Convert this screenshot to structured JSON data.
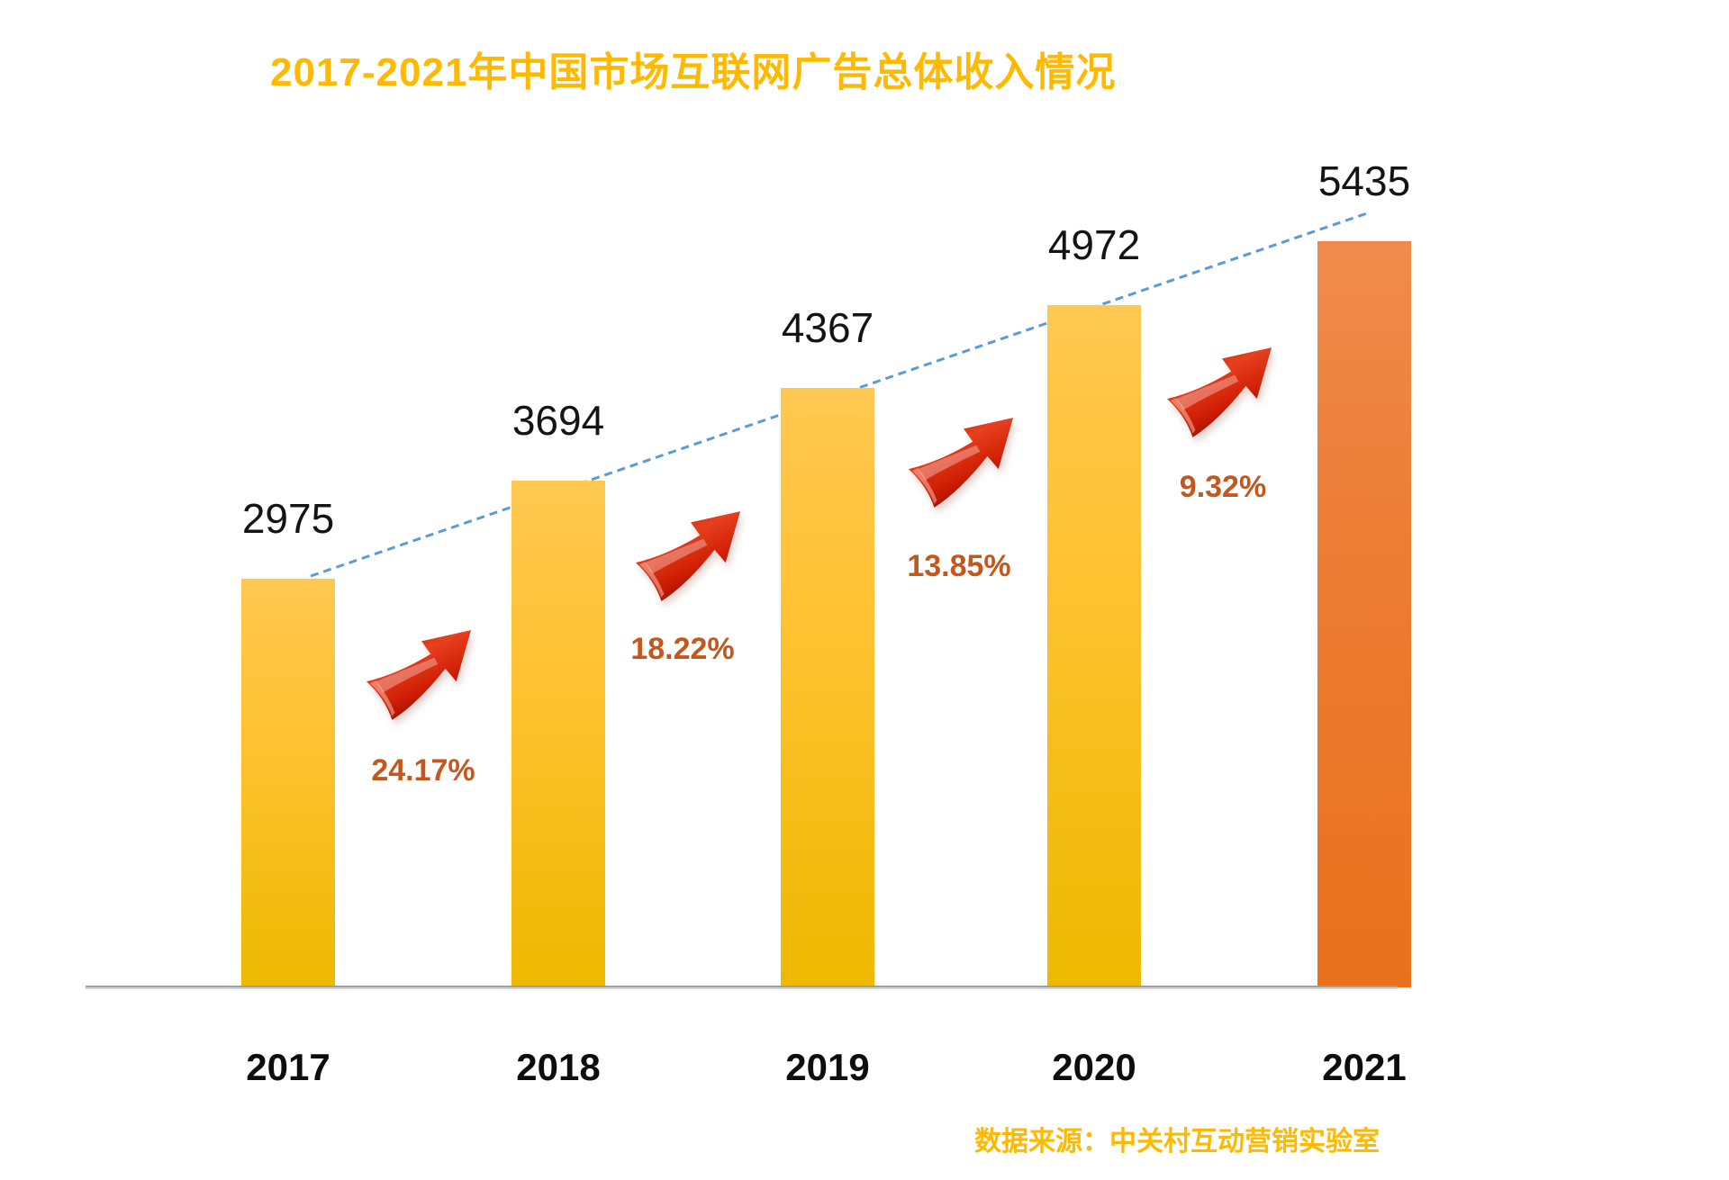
{
  "title": "2017-2021年中国市场互联网广告总体收入情况",
  "source_note": "数据来源：中关村互动营销实验室",
  "chart_data": {
    "type": "bar",
    "title": "2017-2021年中国市场互联网广告总体收入情况",
    "categories": [
      "2017",
      "2018",
      "2019",
      "2020",
      "2021"
    ],
    "values": [
      2975,
      3694,
      4367,
      4972,
      5435
    ],
    "series_name": "互联网广告总体收入",
    "growth_labels": [
      "24.17%",
      "18.22%",
      "13.85%",
      "9.32%"
    ],
    "ylim": [
      0,
      5800
    ],
    "grid": false,
    "legend": false,
    "value_labels_shown": true,
    "trendline": "dashed straight line from 2017 bar top to 2021 bar top",
    "source": "数据来源：中关村互动营销实验室",
    "colors": {
      "bar_gradient_top": "#FFC851",
      "bar_gradient_bottom": "#EDB900",
      "highlight_bar_gradient_top": "#F08B4D",
      "highlight_bar_gradient_bottom": "#E8711C",
      "highlight_bar_year": "2021",
      "title_color": "#FFB900",
      "source_color": "#FFB900",
      "value_label_color": "#141414",
      "year_label_color": "#0d0d0d",
      "growth_label_color": "#C2581E",
      "trendline_color": "#5B9BD5",
      "arrow_color": "#D42310"
    },
    "icons": {
      "growth_arrow": "red-3d-up-right-arrow-icon"
    }
  }
}
